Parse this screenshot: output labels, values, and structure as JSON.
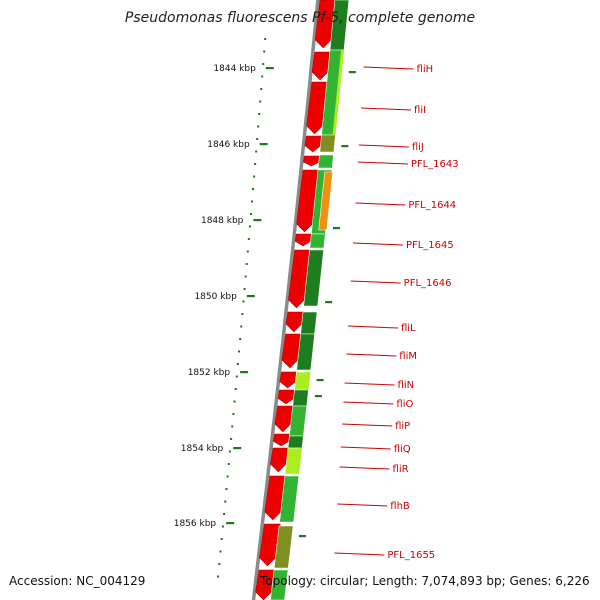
{
  "title": "Pseudomonas fluorescens Pf-5, complete genome",
  "accession": "Accession: NC_004129",
  "topology": "Topology: circular; Length: 7,074,893 bp; Genes: 6,226",
  "scale_labels": [
    "1844 kbp",
    "1846 kbp",
    "1848 kbp",
    "1850 kbp",
    "1852 kbp",
    "1854 kbp",
    "1856 kbp"
  ],
  "genes": [
    {
      "label": "fliH"
    },
    {
      "label": "fliI"
    },
    {
      "label": "fliJ"
    },
    {
      "label": "PFL_1643"
    },
    {
      "label": "PFL_1644"
    },
    {
      "label": "PFL_1645"
    },
    {
      "label": "PFL_1646"
    },
    {
      "label": "fliL"
    },
    {
      "label": "fliM"
    },
    {
      "label": "fliN"
    },
    {
      "label": "fliO"
    },
    {
      "label": "fliP"
    },
    {
      "label": "fliQ"
    },
    {
      "label": "fliR"
    },
    {
      "label": "flhB"
    },
    {
      "label": "PFL_1655"
    }
  ],
  "colors": {
    "forward_strand": "#ee0000",
    "label_text": "#cc0000",
    "scale_ticks": "#1a7a1a",
    "backbone": "#8a8a8a",
    "cog_dark_green": "#1e7d1e",
    "cog_green": "#32b432",
    "cog_lime": "#aaee22",
    "cog_orange": "#f0900f",
    "cog_olive": "#7f8f20"
  }
}
